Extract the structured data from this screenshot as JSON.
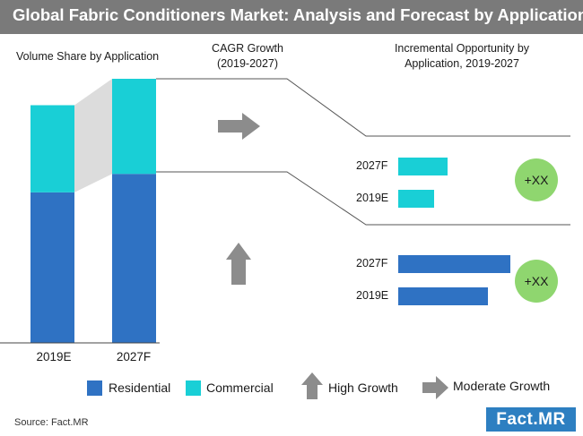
{
  "title": "Global Fabric Conditioners Market: Analysis and Forecast by Application",
  "colors": {
    "residential": "#2f72c3",
    "commercial": "#19cfd6",
    "growth_arrow": "#8c8c8c",
    "opportunity_circle": "#8fd66f",
    "title_bar": "#7a7a7a"
  },
  "headers": {
    "volume_share": "Volume Share by Application",
    "cagr_line1": "CAGR Growth",
    "cagr_line2": "(2019-2027)",
    "incremental_line1": "Incremental Opportunity by",
    "incremental_line2": "Application, 2019-2027"
  },
  "chart_data": [
    {
      "type": "bar",
      "stacked": true,
      "categories": [
        "2019E",
        "2027F"
      ],
      "series": [
        {
          "name": "Residential",
          "values": [
            57,
            64
          ]
        },
        {
          "name": "Commercial",
          "values": [
            33,
            36
          ]
        }
      ],
      "ylim": [
        0,
        100
      ],
      "grid": false
    },
    {
      "type": "bar",
      "orientation": "horizontal",
      "categories": [
        "2027F",
        "2019E"
      ],
      "series": [
        {
          "name": "Commercial",
          "values": [
            55,
            40
          ]
        }
      ],
      "badge": "+XX",
      "cagr_indicator": "moderate-growth"
    },
    {
      "type": "bar",
      "orientation": "horizontal",
      "categories": [
        "2027F",
        "2019E"
      ],
      "series": [
        {
          "name": "Residential",
          "values": [
            125,
            100
          ]
        }
      ],
      "badge": "+XX",
      "cagr_indicator": "high-growth"
    }
  ],
  "legend": {
    "residential": "Residential",
    "commercial": "Commercial",
    "high_growth": "High Growth",
    "moderate_growth": "Moderate Growth"
  },
  "source": "Source: Fact.MR",
  "logo": "Fact.MR"
}
